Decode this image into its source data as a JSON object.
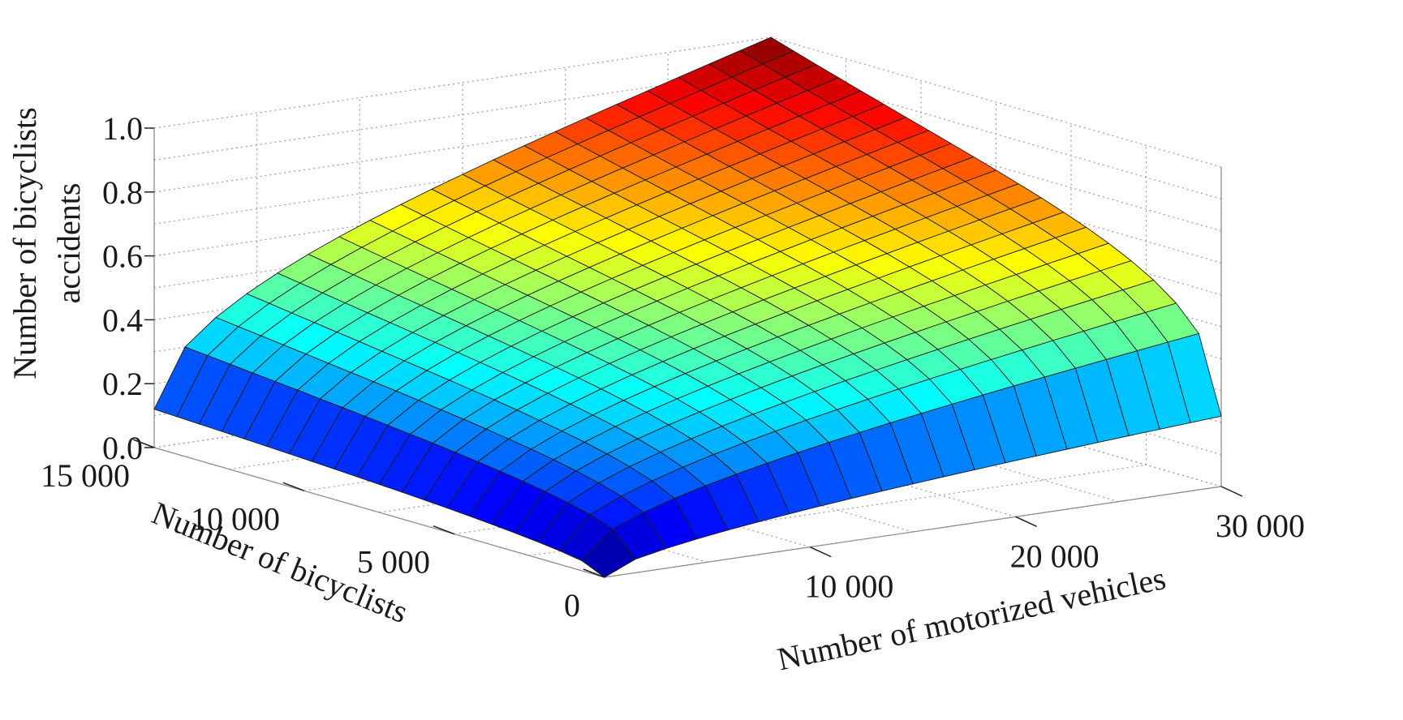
{
  "chart_data": {
    "type": "surface",
    "title": "",
    "x_label": "Number of motorized vehicles",
    "y_label": "Number of bicyclists",
    "z_label_lines": [
      "Number of bicyclists",
      "accidents"
    ],
    "x_range": [
      0,
      30000
    ],
    "y_range": [
      0,
      15000
    ],
    "z_range": [
      0,
      1.0
    ],
    "x_ticks": [
      10000,
      20000,
      30000
    ],
    "x_tick_labels": [
      "10 000",
      "20 000",
      "30 000"
    ],
    "y_ticks": [
      0,
      5000,
      10000,
      15000
    ],
    "y_tick_labels": [
      "0",
      "5 000",
      "10 000",
      "15 000"
    ],
    "z_ticks": [
      0,
      0.2,
      0.4,
      0.6,
      0.8,
      1.0
    ],
    "z_tick_labels": [
      "0.0",
      "0.2",
      "0.4",
      "0.6",
      "0.8",
      "1.0"
    ],
    "grid": true,
    "colormap": "jet",
    "mesh_divisions": {
      "x": 20,
      "y": 20
    },
    "corner_values": [
      {
        "vehicles": 0,
        "bicyclists": 0,
        "accidents": 0.0
      },
      {
        "vehicles": 30000,
        "bicyclists": 0,
        "accidents": 0.22
      },
      {
        "vehicles": 0,
        "bicyclists": 15000,
        "accidents": 0.12
      },
      {
        "vehicles": 30000,
        "bicyclists": 15000,
        "accidents": 1.0
      }
    ],
    "model": "accidents = 1.0 * (vehicles/30000)^0.55 * (bicyclists/15000)^0.45 + 0.22 * (vehicles/30000)^0.55 * (1 - bicyclists/15000)^2 + 0.12 * (bicyclists/15000)^0.45 * (1 - vehicles/30000)^2"
  }
}
